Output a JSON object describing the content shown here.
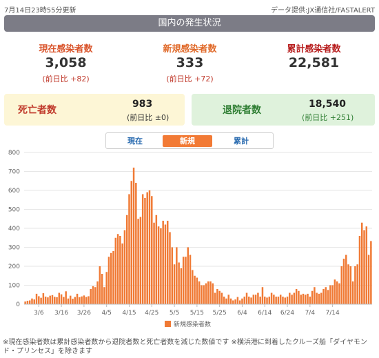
{
  "header": {
    "updated": "7月14日23時55分更新",
    "source": "データ提供:JX通信社/FASTALERT"
  },
  "section_title": "国内の発生状況",
  "stats": {
    "current": {
      "label": "現在感染者数",
      "value": "3,058",
      "diff": "(前日比 +82)"
    },
    "new": {
      "label": "新規感染者数",
      "value": "333",
      "diff": "(前日比 +72)"
    },
    "total": {
      "label": "累計感染者数",
      "value": "22,581"
    }
  },
  "deaths": {
    "label": "死亡者数",
    "value": "983",
    "diff": "(前日比 ±0)"
  },
  "recovered": {
    "label": "退院者数",
    "value": "18,540",
    "diff": "(前日比 +251)"
  },
  "tabs": [
    "現在",
    "新規",
    "累計"
  ],
  "colors": {
    "bar": "#f07a35",
    "accent_current": "#d9542b",
    "accent_total": "#b71c1c",
    "recovered_green": "#2e7d32"
  },
  "chart_data": {
    "type": "bar",
    "series": [
      {
        "name": "新規感染者数",
        "color": "#f07a35"
      }
    ],
    "ylim": [
      0,
      800
    ],
    "yticks": [
      0,
      100,
      200,
      300,
      400,
      500,
      600,
      700,
      800
    ],
    "xtick_labels": [
      "3/6",
      "3/16",
      "3/26",
      "4/5",
      "4/15",
      "4/25",
      "5/5",
      "5/15",
      "5/25",
      "6/4",
      "6/14",
      "6/24",
      "7/4",
      "7/14"
    ],
    "start_date": "2/29",
    "values": [
      14,
      18,
      20,
      30,
      25,
      55,
      42,
      34,
      58,
      40,
      36,
      45,
      48,
      39,
      37,
      60,
      52,
      38,
      68,
      30,
      45,
      29,
      38,
      55,
      37,
      41,
      46,
      38,
      42,
      80,
      95,
      90,
      120,
      200,
      160,
      90,
      170,
      250,
      270,
      280,
      350,
      370,
      360,
      320,
      390,
      470,
      580,
      650,
      720,
      640,
      450,
      460,
      580,
      560,
      590,
      600,
      570,
      430,
      470,
      410,
      400,
      440,
      420,
      440,
      380,
      300,
      210,
      300,
      220,
      190,
      250,
      250,
      300,
      260,
      180,
      150,
      140,
      120,
      100,
      100,
      110,
      120,
      120,
      110,
      60,
      80,
      70,
      60,
      40,
      30,
      50,
      30,
      20,
      25,
      38,
      20,
      30,
      40,
      60,
      40,
      35,
      50,
      50,
      60,
      40,
      90,
      40,
      35,
      40,
      60,
      50,
      40,
      40,
      50,
      40,
      35,
      40,
      60,
      50,
      60,
      80,
      70,
      50,
      55,
      50,
      55,
      40,
      70,
      90,
      60,
      55,
      60,
      80,
      90,
      75,
      100,
      100,
      130,
      120,
      110,
      200,
      240,
      260,
      210,
      200,
      120,
      200,
      210,
      360,
      430,
      390,
      410,
      260,
      333
    ]
  },
  "legend": {
    "label": "新規感染者数"
  },
  "note": "※現在感染者数は累計感染者数から退院者数と死亡者数を減じた数値です ※横浜港に到着したクルーズ船「ダイヤモンド・プリンセス」を除きます"
}
